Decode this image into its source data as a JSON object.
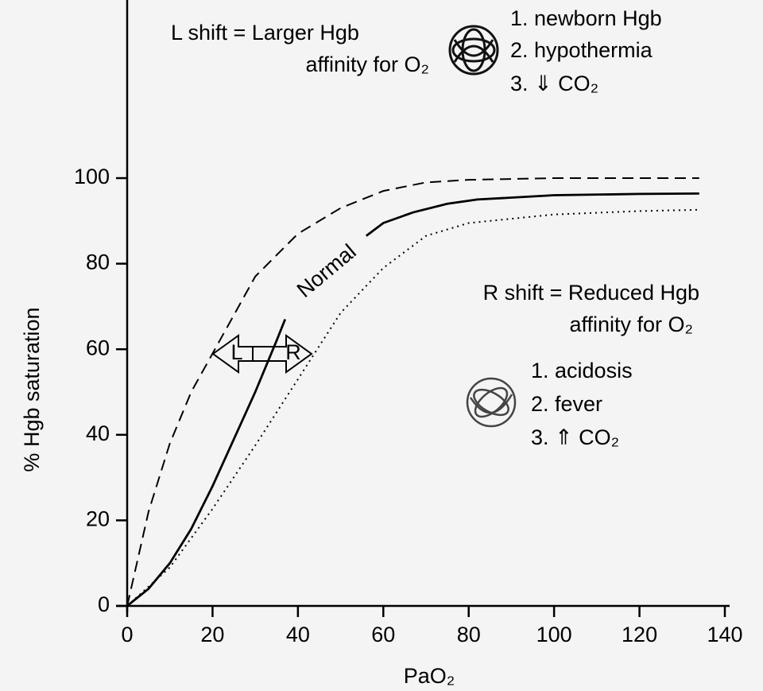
{
  "chart_data": {
    "type": "line",
    "xlabel": "PaO₂",
    "ylabel": "% Hgb saturation",
    "xlim": [
      0,
      140
    ],
    "xticks": [
      0,
      20,
      40,
      60,
      80,
      100,
      120,
      140
    ],
    "ylim": [
      0,
      142
    ],
    "yticks": [
      0,
      20,
      40,
      60,
      80,
      100
    ],
    "series": [
      {
        "color": "#000000",
        "dash": "dashed",
        "x": [
          0,
          5,
          10,
          15,
          20,
          25,
          30,
          40,
          50,
          60,
          70,
          80,
          100,
          120,
          134
        ],
        "values": [
          0,
          22,
          38,
          50,
          59,
          68,
          77,
          87,
          93,
          97,
          99,
          99.6,
          100,
          100,
          100
        ]
      },
      {
        "name": "Normal",
        "color": "#000000",
        "dash": "solid",
        "x": [
          0,
          5,
          10,
          15,
          20,
          25,
          30,
          35,
          37,
          45,
          56,
          60,
          67,
          75,
          82,
          100,
          120,
          134
        ],
        "values": [
          0,
          4,
          10,
          18,
          28,
          39,
          50,
          62,
          67,
          null,
          86.5,
          89.5,
          92,
          94,
          95,
          96,
          96.3,
          96.4
        ]
      },
      {
        "color": "#000000",
        "dash": "dotted",
        "x": [
          0,
          10,
          20,
          30,
          40,
          50,
          60,
          70,
          80,
          100,
          120,
          134
        ],
        "values": [
          0,
          9,
          22.7,
          37.5,
          53,
          68.5,
          79,
          86.5,
          89.5,
          91.5,
          92.3,
          92.6
        ]
      }
    ],
    "annotations": {
      "left_title": [
        "L shift = Larger Hgb",
        "affinity for O₂"
      ],
      "left_list": [
        "1. newborn Hgb",
        "2. hypothermia",
        "3. ⇓ CO₂"
      ],
      "right_title": [
        "R shift = Reduced Hgb",
        "affinity for O₂"
      ],
      "right_list": [
        "1. acidosis",
        "2. fever",
        "3. ⇑ CO₂"
      ],
      "arrow_left": "L",
      "arrow_right": "R"
    }
  }
}
